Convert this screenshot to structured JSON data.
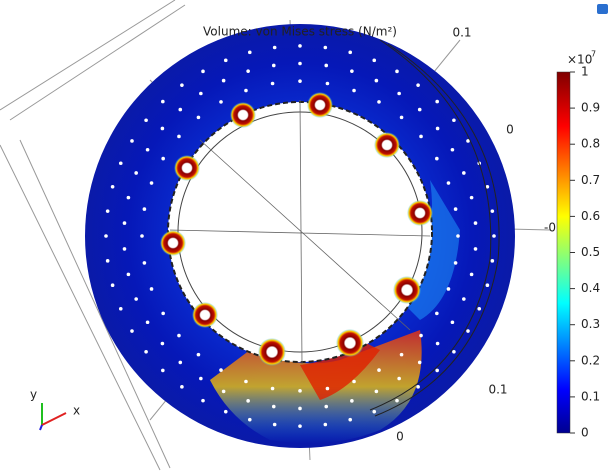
{
  "plot": {
    "title": "Volume: von Mises stress (N/m²)",
    "axis_labels": [
      "0.1",
      "0",
      "-0",
      "0.1",
      "0"
    ],
    "triad": {
      "x": "x",
      "y": "y"
    }
  },
  "colorbar": {
    "multiplier": "×10",
    "exponent": "7",
    "lim": [
      0,
      1
    ],
    "ticks": [
      0,
      0.1,
      0.2,
      0.3,
      0.4,
      0.5,
      0.6,
      0.7,
      0.8,
      0.9,
      1
    ]
  }
}
